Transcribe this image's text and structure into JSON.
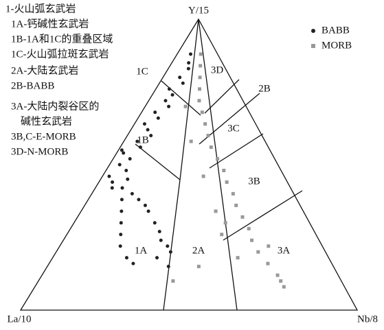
{
  "chart_data": {
    "type": "ternary",
    "axes": {
      "top": "Y/15",
      "left": "La/10",
      "right": "Nb/8"
    },
    "notes": [
      "1-火山弧玄武岩",
      "1A-钙碱性玄武岩",
      "1B-1A和1C的重叠区域",
      "1C-火山弧拉斑玄武岩",
      "2A-大陆玄武岩",
      "2B-BABB",
      "3A-大陆内裂谷区的",
      "碱性玄武岩",
      "3B,C-E-MORB",
      "3D-N-MORB"
    ],
    "regions": [
      "1C",
      "3D",
      "2B",
      "3C",
      "1B",
      "3B",
      "1A",
      "2A",
      "3A"
    ],
    "legend_position": "upper right",
    "series": [
      {
        "name": "BABB",
        "color": "#222222",
        "marker": "circle",
        "y15": [
          0.88,
          0.85,
          0.83,
          0.8,
          0.78,
          0.76,
          0.74,
          0.72,
          0.7,
          0.68,
          0.66,
          0.64,
          0.62,
          0.6,
          0.58,
          0.56,
          0.54,
          0.52,
          0.5,
          0.48,
          0.46,
          0.44,
          0.42,
          0.4,
          0.38,
          0.36,
          0.34,
          0.3,
          0.27,
          0.24,
          0.22,
          0.2,
          0.18,
          0.15,
          0.38,
          0.34,
          0.3,
          0.26,
          0.22,
          0.18,
          0.16,
          0.45,
          0.42,
          0.55
        ],
        "nb8": [
          0.04,
          0.05,
          0.06,
          0.05,
          0.07,
          0.04,
          0.06,
          0.05,
          0.07,
          0.04,
          0.06,
          0.03,
          0.05,
          0.07,
          0.04,
          0.06,
          0.02,
          0.05,
          0.03,
          0.06,
          0.02,
          0.04,
          0.08,
          0.12,
          0.15,
          0.18,
          0.2,
          0.24,
          0.27,
          0.29,
          0.32,
          0.34,
          0.31,
          0.36,
          0.1,
          0.12,
          0.14,
          0.16,
          0.18,
          0.22,
          0.25,
          0.08,
          0.05,
          0.01
        ]
      },
      {
        "name": "MORB",
        "color": "#999999",
        "marker": "square",
        "y15": [
          0.88,
          0.84,
          0.8,
          0.76,
          0.72,
          0.68,
          0.64,
          0.6,
          0.56,
          0.52,
          0.48,
          0.44,
          0.4,
          0.36,
          0.32,
          0.28,
          0.24,
          0.2,
          0.16,
          0.12,
          0.1,
          0.08,
          0.18,
          0.22,
          0.26,
          0.3,
          0.15,
          0.1,
          0.7,
          0.58,
          0.46,
          0.34
        ],
        "nb8": [
          0.07,
          0.09,
          0.11,
          0.13,
          0.15,
          0.18,
          0.21,
          0.24,
          0.27,
          0.31,
          0.35,
          0.38,
          0.42,
          0.45,
          0.49,
          0.53,
          0.56,
          0.6,
          0.65,
          0.7,
          0.72,
          0.74,
          0.55,
          0.62,
          0.46,
          0.45,
          0.45,
          0.4,
          0.12,
          0.2,
          0.3,
          0.4
        ]
      }
    ]
  }
}
